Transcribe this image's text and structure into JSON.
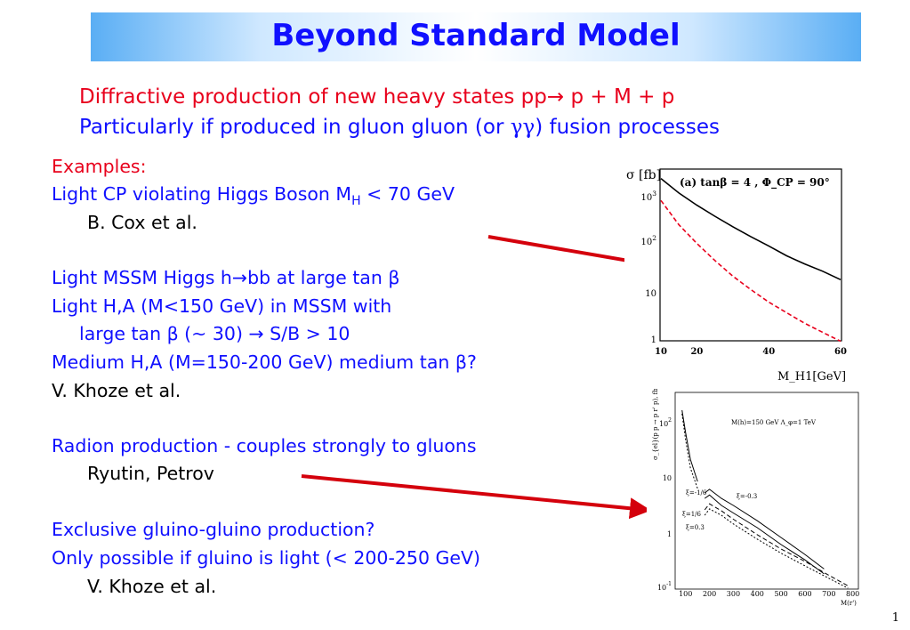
{
  "title": "Beyond Standard Model",
  "subtitle": {
    "line1": "Diffractive production of new heavy states pp→ p + M + p",
    "line2_pre": "Particularly if produced in gluon gluon (or ",
    "line2_sym": "γγ",
    "line2_post": ") fusion processes"
  },
  "lines": {
    "examples": "Examples:",
    "higgs_cp_pre": "Light CP violating Higgs Boson  M",
    "higgs_cp_sub": "H",
    "higgs_cp_post": " < 70 GeV",
    "cox": "B. Cox et al.",
    "mssm_h": "Light MSSM Higgs h→bb at large tan β",
    "mssm_ha": "Light H,A  (M<150 GeV) in MSSM with",
    "large_tan": "large tan β (~ 30) → S/B > 10",
    "medium": "Medium H,A (M=150-200 GeV) medium tan β?",
    "khoze1": "V.  Khoze et al.",
    "radion": "Radion production - couples strongly to gluons",
    "ryutin": "Ryutin, Petrov",
    "gluino": "Exclusive gluino-gluino production?",
    "gluino_light": "Only possible if gluino is light (< 200-250 GeV)",
    "khoze2": "V. Khoze et al."
  },
  "page_number": "1",
  "colors": {
    "red": "#e8001c",
    "blue": "#1010ff",
    "title_bar": "#5aaef4"
  },
  "chart_data": [
    {
      "type": "line",
      "ylabel": "σ [fb]",
      "xlabel": "M_H1[GeV]",
      "annotation": "(a) tanβ = 4 , Φ_CP = 90°",
      "x_ticks": [
        "10",
        "20",
        "40",
        "60"
      ],
      "y_ticks": [
        "1",
        "10",
        "10 2",
        "10 3"
      ],
      "xlim": [
        10,
        60
      ],
      "ylim": [
        0.5,
        3000
      ],
      "yscale": "log",
      "series": [
        {
          "style": "solid",
          "color": "#000000",
          "x": [
            10,
            15,
            20,
            25,
            30,
            35,
            40,
            45,
            50,
            55,
            60
          ],
          "y": [
            2000,
            1000,
            560,
            330,
            200,
            125,
            80,
            50,
            34,
            24,
            16
          ]
        },
        {
          "style": "dashed",
          "color": "#e8001c",
          "x": [
            10,
            15,
            20,
            25,
            30,
            35,
            40,
            45,
            50,
            55,
            60
          ],
          "y": [
            700,
            220,
            90,
            40,
            19,
            10,
            5.5,
            3.3,
            2,
            1.3,
            0.85
          ]
        }
      ]
    },
    {
      "type": "line",
      "ylabel": "σ_{el}(p p → p r' p), fb",
      "xlabel": "M(r')",
      "annotation": "M(h)=150 GeV   Λ_φ=1 TeV",
      "x_ticks": [
        "100",
        "200",
        "300",
        "400",
        "500",
        "600",
        "700",
        "800"
      ],
      "y_ticks": [
        "10 -1",
        "1",
        "10",
        "10 2"
      ],
      "labels": [
        "ξ=-1/6",
        "ξ=-0.3",
        "ξ=1/6",
        "ξ=0.3"
      ],
      "xlim": [
        60,
        820
      ],
      "ylim": [
        0.1,
        300
      ],
      "yscale": "log",
      "series": [
        {
          "style": "solid",
          "x": [
            85,
            100,
            120,
            150
          ],
          "y": [
            150,
            60,
            20,
            8
          ]
        },
        {
          "style": "dotted",
          "x": [
            85,
            100,
            120,
            150
          ],
          "y": [
            130,
            45,
            14,
            6
          ]
        },
        {
          "style": "solid",
          "x": [
            180,
            200,
            250,
            300,
            400,
            500,
            600,
            680
          ],
          "y": [
            5,
            5.8,
            4,
            3,
            1.6,
            0.8,
            0.4,
            0.22
          ]
        },
        {
          "style": "solid",
          "x": [
            180,
            200,
            250,
            300,
            400,
            500,
            600,
            680
          ],
          "y": [
            4,
            4.6,
            3,
            2.2,
            1.2,
            0.6,
            0.32,
            0.18
          ]
        },
        {
          "style": "dashed",
          "x": [
            180,
            200,
            250,
            300,
            400,
            500,
            600,
            700,
            780
          ],
          "y": [
            2.5,
            3.2,
            2.4,
            1.7,
            0.9,
            0.5,
            0.3,
            0.17,
            0.11
          ]
        },
        {
          "style": "dotted",
          "x": [
            180,
            200,
            250,
            300,
            400,
            500,
            600,
            700,
            780
          ],
          "y": [
            2,
            2.6,
            2,
            1.4,
            0.75,
            0.42,
            0.25,
            0.15,
            0.1
          ]
        }
      ]
    }
  ]
}
